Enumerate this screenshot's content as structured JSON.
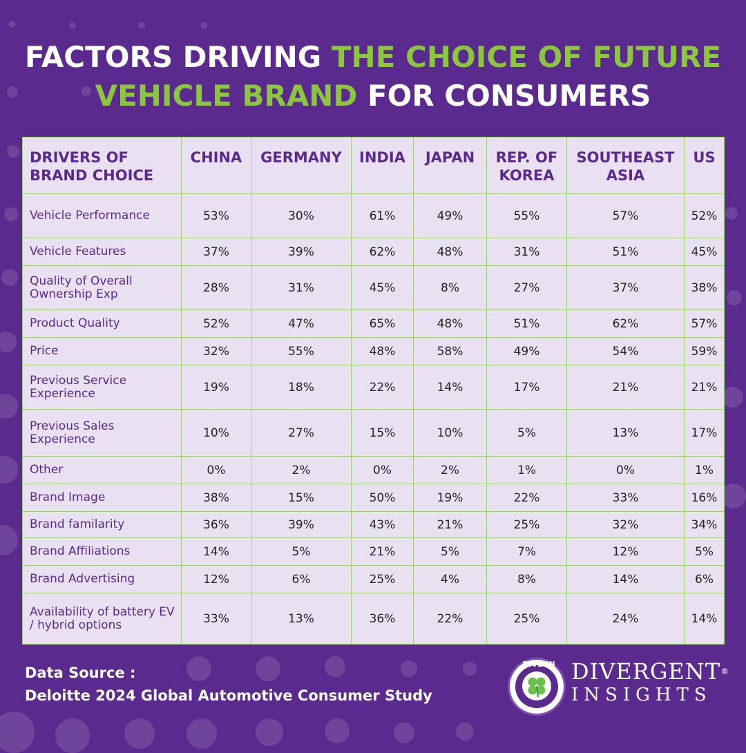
{
  "title": {
    "line1_white": "FACTORS DRIVING ",
    "line1_green": "THE CHOICE OF  FUTURE",
    "line2_green": "VEHICLE BRAND",
    "line2_white": " FOR CONSUMERS"
  },
  "table": {
    "headers": [
      "DRIVERS OF BRAND CHOICE",
      "CHINA",
      "GERMANY",
      "INDIA",
      "JAPAN",
      "REP. OF KOREA",
      "SOUTHEAST ASIA",
      "US"
    ],
    "rows": [
      {
        "label": "Vehicle Performance",
        "values": [
          "53%",
          "30%",
          "61%",
          "49%",
          "55%",
          "57%",
          "52%"
        ]
      },
      {
        "label": "Vehicle Features",
        "values": [
          "37%",
          "39%",
          "62%",
          "48%",
          "31%",
          "51%",
          "45%"
        ]
      },
      {
        "label": "Quality of Overall Ownership Exp",
        "values": [
          "28%",
          "31%",
          "45%",
          "8%",
          "27%",
          "37%",
          "38%"
        ]
      },
      {
        "label": "Product Quality",
        "values": [
          "52%",
          "47%",
          "65%",
          "48%",
          "51%",
          "62%",
          "57%"
        ]
      },
      {
        "label": "Price",
        "values": [
          "32%",
          "55%",
          "48%",
          "58%",
          "49%",
          "54%",
          "59%"
        ]
      },
      {
        "label": "Previous Service Experience",
        "values": [
          "19%",
          "18%",
          "22%",
          "14%",
          "17%",
          "21%",
          "21%"
        ]
      },
      {
        "label": "Previous Sales Experience",
        "values": [
          "10%",
          "27%",
          "15%",
          "10%",
          "5%",
          "13%",
          "17%"
        ]
      },
      {
        "label": "Other",
        "values": [
          "0%",
          "2%",
          "0%",
          "2%",
          "1%",
          "0%",
          "1%"
        ]
      },
      {
        "label": "Brand Image",
        "values": [
          "38%",
          "15%",
          "50%",
          "19%",
          "22%",
          "33%",
          "16%"
        ]
      },
      {
        "label": "Brand familarity",
        "values": [
          "36%",
          "39%",
          "43%",
          "21%",
          "25%",
          "32%",
          "34%"
        ]
      },
      {
        "label": "Brand Affiliations",
        "values": [
          "14%",
          "5%",
          "21%",
          "5%",
          "7%",
          "12%",
          "5%"
        ]
      },
      {
        "label": "Brand Advertising",
        "values": [
          "12%",
          "6%",
          "25%",
          "4%",
          "8%",
          "14%",
          "6%"
        ]
      },
      {
        "label": "Availability of battery EV / hybrid options",
        "values": [
          "33%",
          "13%",
          "36%",
          "22%",
          "25%",
          "24%",
          "14%"
        ]
      }
    ]
  },
  "source": {
    "label": "Data Source :",
    "text": "Deloitte 2024 Global Automotive Consumer Study"
  },
  "logo": {
    "badge": "DIVE-IN",
    "name": "DIVERGENT",
    "reg": "®",
    "sub": "INSIGHTS"
  },
  "colors": {
    "background": "#5a2a8e",
    "accent_green": "#8cc63f",
    "table_bg": "#e9e1f1",
    "grid_line": "#9cd06a"
  }
}
